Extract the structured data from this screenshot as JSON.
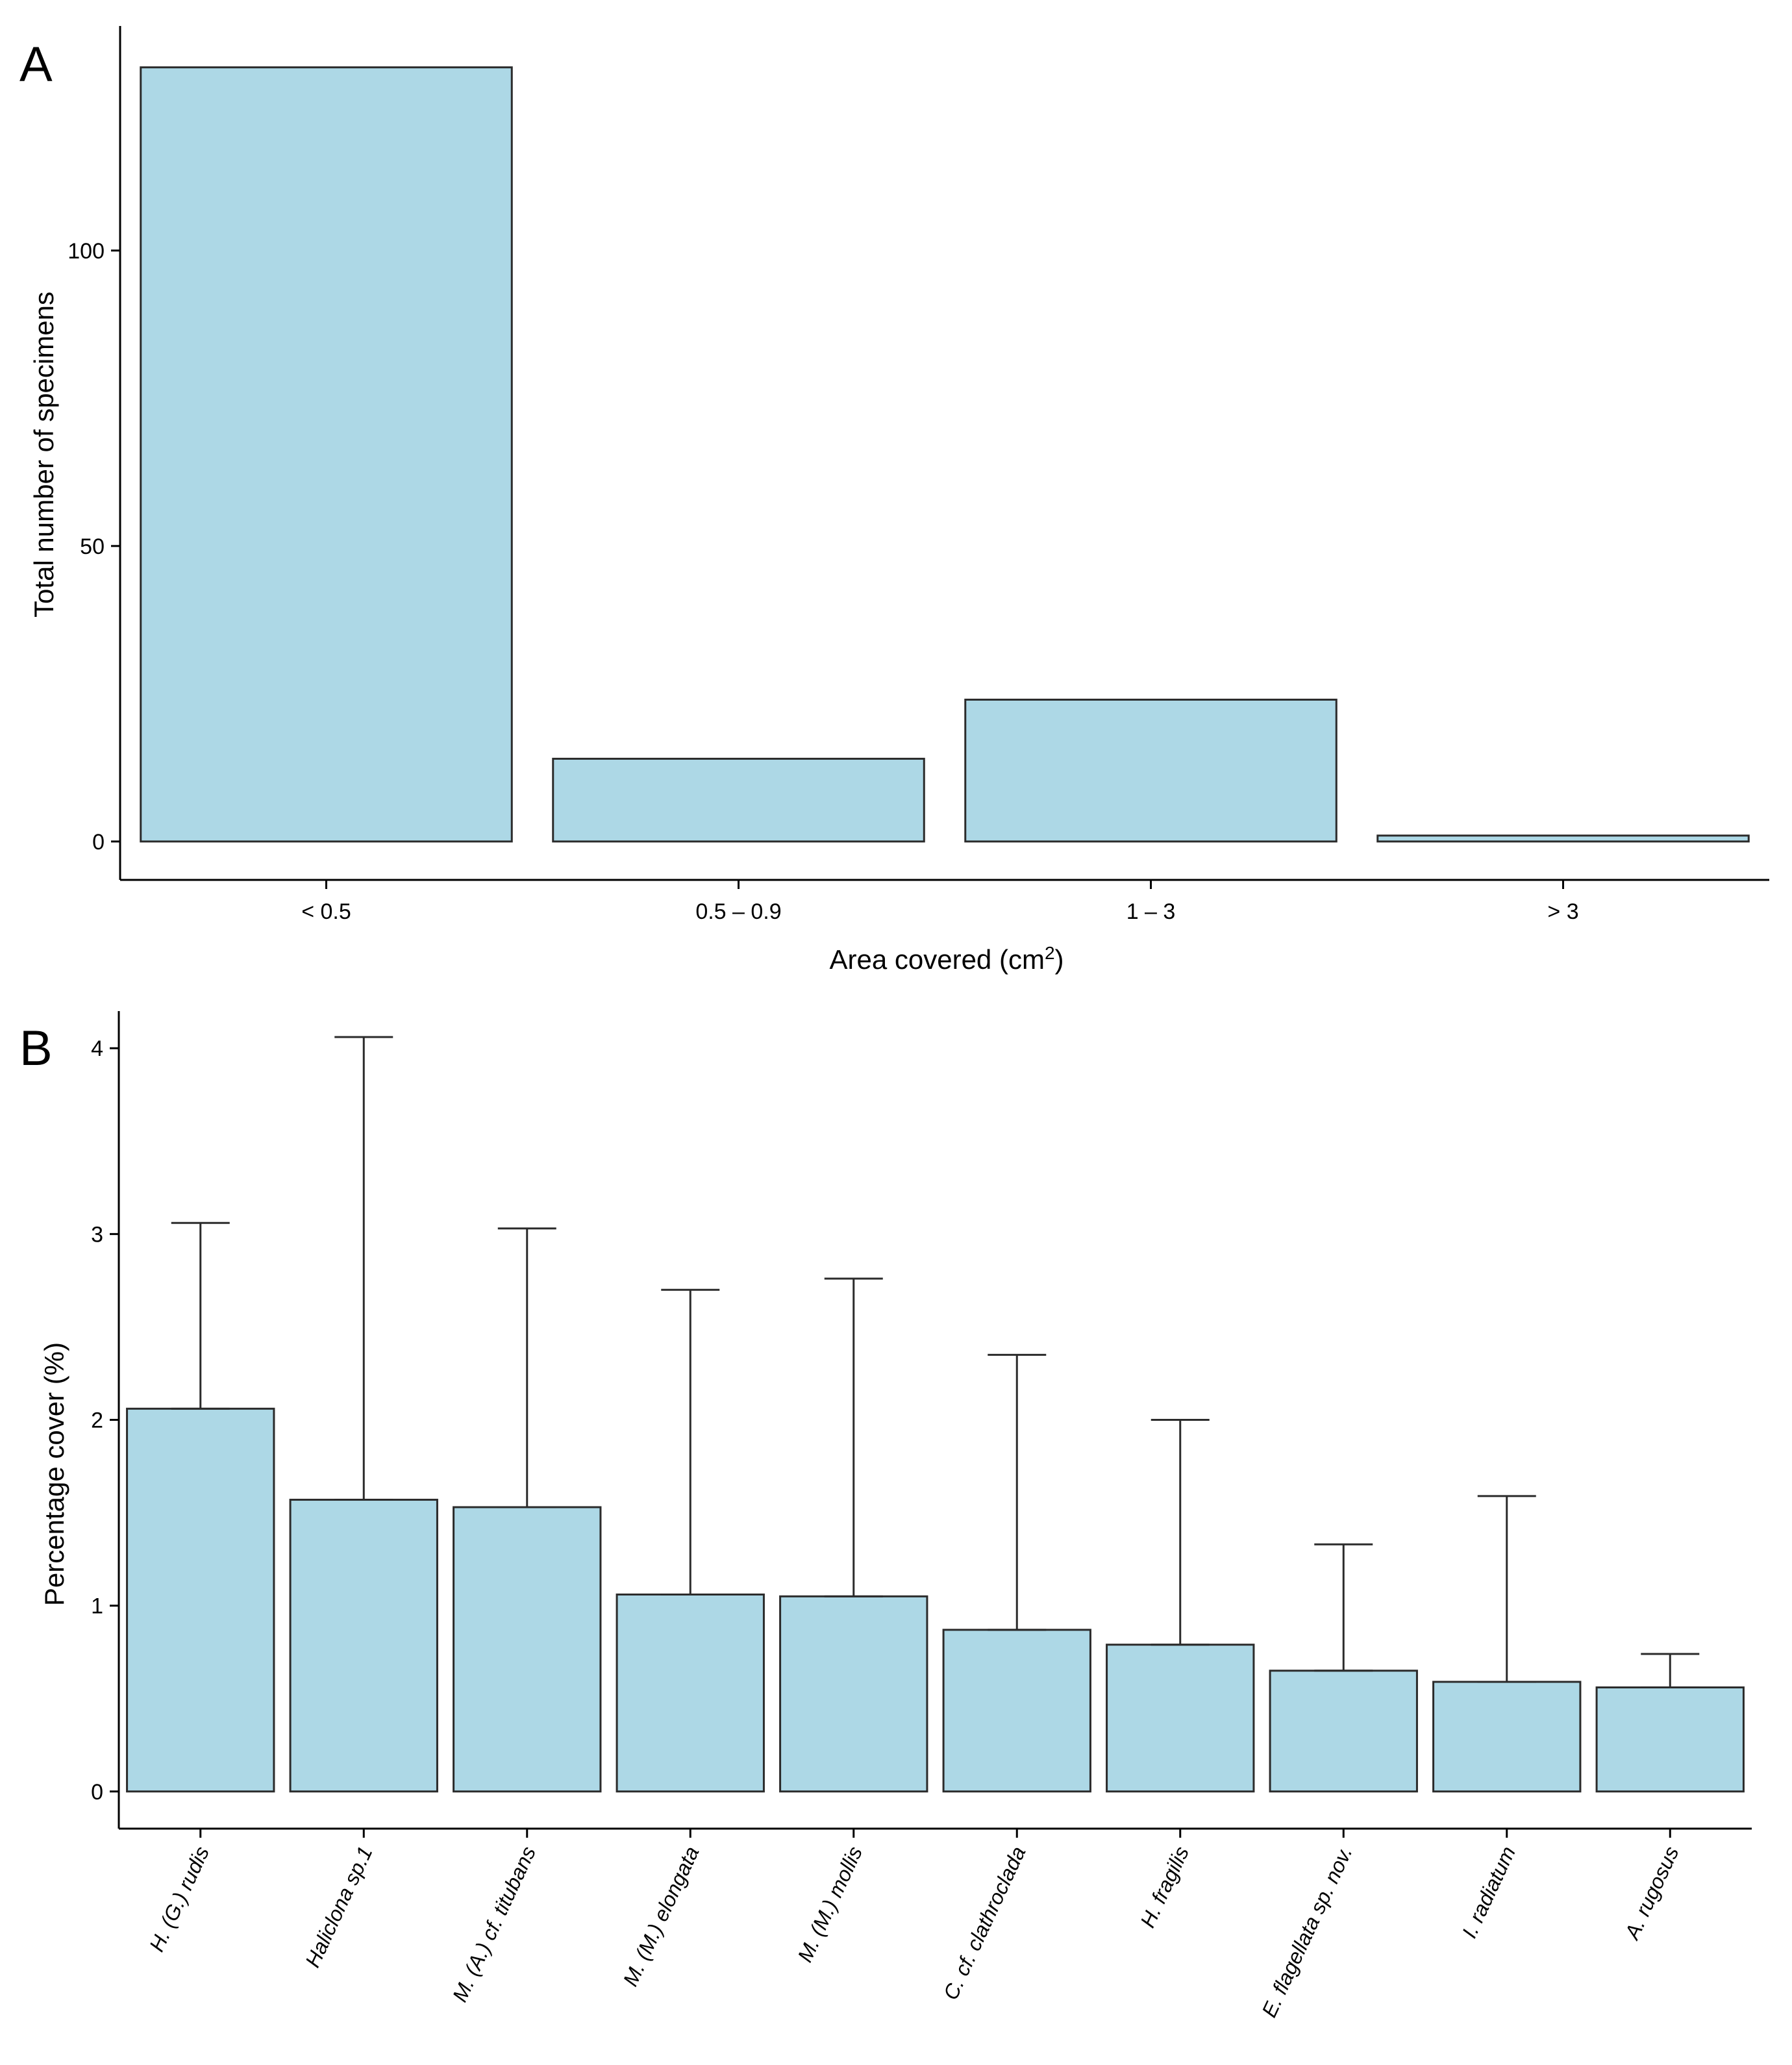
{
  "chart_data": [
    {
      "panel": "A",
      "type": "bar",
      "title": "",
      "xlabel": "Area covered (cm²)",
      "ylabel": "Total number of specimens",
      "categories": [
        "< 0.5",
        "0.5 – 0.9",
        "1 – 3",
        "> 3"
      ],
      "values": [
        131,
        14,
        24,
        1
      ],
      "ylim": [
        -6.5,
        138
      ],
      "yticks": [
        0,
        50,
        100
      ],
      "bar_color": "#add8e6",
      "grid": false
    },
    {
      "panel": "B",
      "type": "bar",
      "title": "",
      "xlabel": "",
      "ylabel": "Percentage cover (%)",
      "categories": [
        "H. (G.) rudis",
        "Haliclona sp.1",
        "M. (A.) cf. titubans",
        "M. (M.) elongata",
        "M. (M.) mollis",
        "C. cf. clathroclada",
        "H. fragilis",
        "E. flagellata sp. nov.",
        "I. radiatum",
        "A. rugosus"
      ],
      "values": [
        2.06,
        1.57,
        1.53,
        1.06,
        1.05,
        0.87,
        0.79,
        0.65,
        0.59,
        0.56
      ],
      "error_upper": [
        3.06,
        4.06,
        3.03,
        2.7,
        2.76,
        2.35,
        2.0,
        1.33,
        1.59,
        0.74
      ],
      "ylim": [
        -0.2,
        4.2
      ],
      "yticks": [
        0,
        1,
        2,
        3,
        4
      ],
      "bar_color": "#add8e6",
      "grid": false
    }
  ]
}
